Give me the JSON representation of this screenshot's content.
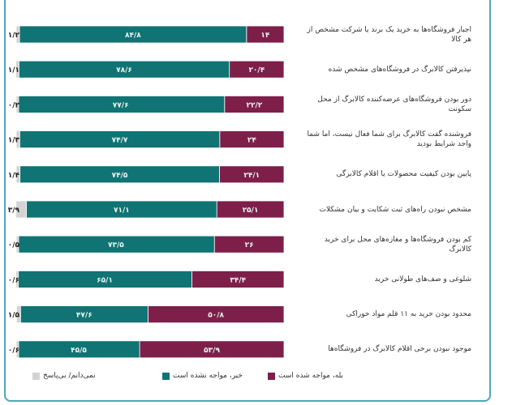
{
  "chart_data": {
    "type": "bar",
    "orientation": "horizontal-stacked",
    "xlim": [
      0,
      100
    ],
    "categories": [
      "اجبار فروشگاه‌ها به خرید یک برند یا شرکت مشخص از هر کالا",
      "نپذیرفتن کالابرگ در فروشگاه‌های مشخص شده",
      "دور بودن فروشگاه‌های عرضه‌کننده کالابرگ از محل سکونت",
      "فروشنده گفت کالابرگ برای شما فعال نیست، اما شما واجد شرایط بودید",
      "پایین بودن کیفیت محصولات یا اقلام کالابرگی",
      "مشخص نبودن راه‌های ثبت شکایت و بیان مشکلات",
      "کم بودن فروشگاه‌ها و مغازه‌های محل برای خرید کالابرگ",
      "شلوغی و صف‌های طولانی خرید",
      "محدود بودن خرید به ۱۱ قلم مواد خوراکی",
      "موجود نبودن برخی اقلام کالابرگ در فروشگاه‌ها"
    ],
    "series": [
      {
        "name": "بله، مواجه شده است",
        "color": "#7e1f4a",
        "values": [
          14,
          20.4,
          22.2,
          24,
          24.1,
          25.1,
          26,
          34.4,
          50.8,
          53.9
        ]
      },
      {
        "name": "خیر، مواجه نشده است",
        "color": "#0f7473",
        "values": [
          84.8,
          78.6,
          77.6,
          74.7,
          74.5,
          71.1,
          73.5,
          65.1,
          47.6,
          45.5
        ]
      },
      {
        "name": "نمی‌دانم/ بی‌پاسخ",
        "color": "#d3d3d3",
        "values": [
          1.2,
          1.1,
          0.2,
          1.3,
          1.4,
          3.9,
          0.5,
          0.6,
          1.5,
          0.6
        ]
      }
    ],
    "legend": "bottom"
  }
}
